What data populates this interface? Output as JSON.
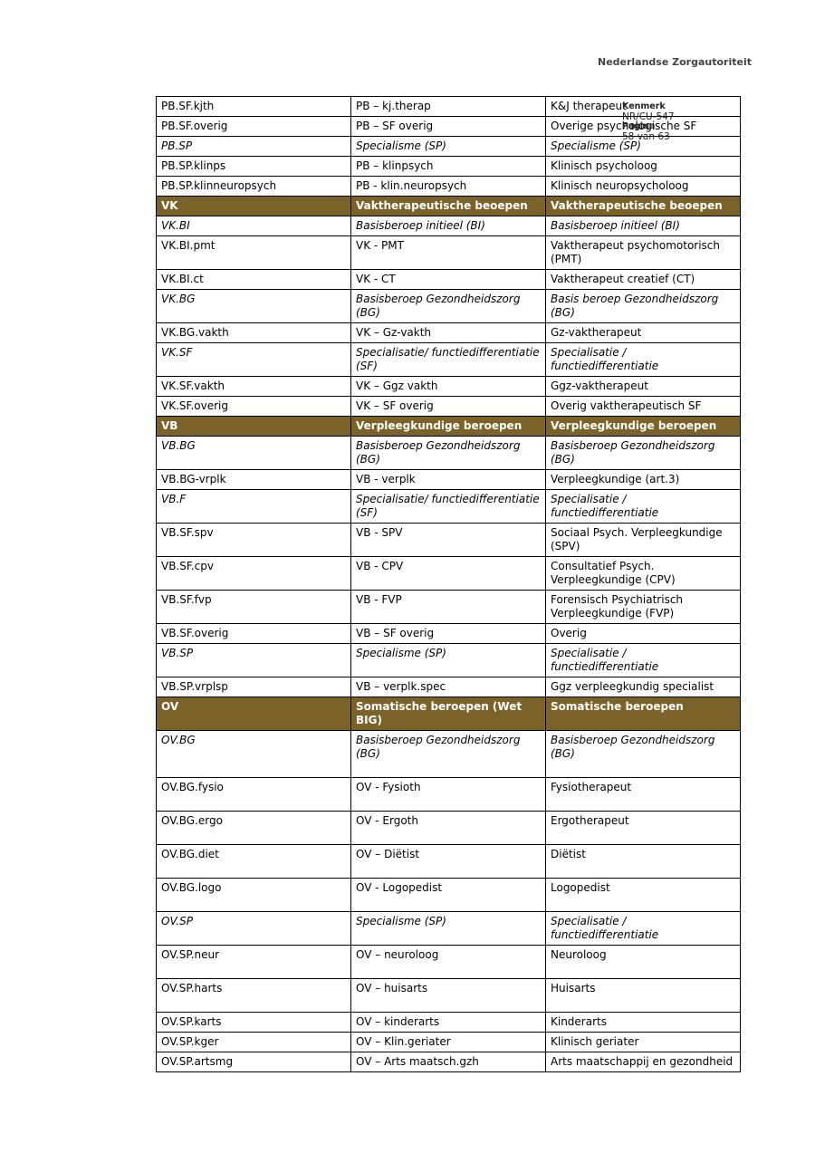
{
  "header": {
    "org": "Nederlandse Zorgautoriteit",
    "kenmerk_label": "Kenmerk",
    "kenmerk": "NR/CU-547",
    "pagina_label": "Pagina",
    "pagina": "58 van 63"
  },
  "table": {
    "rows": [
      {
        "style": "plain",
        "cells": [
          "PB.SF.kjth",
          "PB – kj.therap",
          "K&J therapeut"
        ]
      },
      {
        "style": "plain",
        "cells": [
          "PB.SF.overig",
          "PB – SF overig",
          "Overige psychologische SF"
        ]
      },
      {
        "style": "italic",
        "cells": [
          "PB.SP",
          "Specialisme (SP)",
          "Specialisme (SP)"
        ]
      },
      {
        "style": "plain",
        "cells": [
          "PB.SP.klinps",
          "PB – klinpsych",
          "Klinisch psycholoog"
        ]
      },
      {
        "style": "plain",
        "cells": [
          "PB.SP.klinneuropsych",
          "PB - klin.neuropsych",
          "Klinisch neuropsycholoog"
        ]
      },
      {
        "style": "header",
        "cells": [
          "VK",
          "Vaktherapeutische beoepen",
          "Vaktherapeutische beoepen"
        ]
      },
      {
        "style": "italic",
        "cells": [
          "VK.BI",
          "Basisberoep initieel (BI)",
          "Basisberoep initieel (BI)"
        ]
      },
      {
        "style": "plain",
        "cells": [
          "VK.BI.pmt",
          "VK - PMT",
          "Vaktherapeut psychomotorisch (PMT)"
        ]
      },
      {
        "style": "plain",
        "cells": [
          "VK.BI.ct",
          "VK - CT",
          "Vaktherapeut creatief (CT)"
        ]
      },
      {
        "style": "italic",
        "cells": [
          "VK.BG",
          "Basisberoep Gezondheidszorg (BG)",
          "Basis beroep Gezondheidszorg (BG)"
        ]
      },
      {
        "style": "plain",
        "cells": [
          "VK.BG.vakth",
          "VK – Gz-vakth",
          "Gz-vaktherapeut"
        ]
      },
      {
        "style": "italic",
        "cells": [
          "VK.SF",
          "Specialisatie/ functiedifferentiatie (SF)",
          "Specialisatie / functiedifferentiatie"
        ]
      },
      {
        "style": "plain",
        "cells": [
          "VK.SF.vakth",
          "VK – Ggz vakth",
          "Ggz-vaktherapeut"
        ]
      },
      {
        "style": "plain",
        "cells": [
          "VK.SF.overig",
          "VK – SF overig",
          "Overig vaktherapeutisch SF"
        ]
      },
      {
        "style": "header",
        "cells": [
          "VB",
          "Verpleegkundige beroepen",
          "Verpleegkundige beroepen"
        ]
      },
      {
        "style": "italic",
        "cells": [
          "VB.BG",
          "Basisberoep Gezondheidszorg (BG)",
          "Basisberoep Gezondheidszorg (BG)"
        ]
      },
      {
        "style": "plain",
        "cells": [
          "VB.BG-vrplk",
          "VB - verplk",
          "Verpleegkundige (art.3)"
        ]
      },
      {
        "style": "italic",
        "cells": [
          "VB.F",
          "Specialisatie/ functiedifferentiatie (SF)",
          "Specialisatie / functiedifferentiatie"
        ]
      },
      {
        "style": "plain",
        "cells": [
          "VB.SF.spv",
          "VB - SPV",
          "Sociaal Psych. Verpleegkundige (SPV)"
        ]
      },
      {
        "style": "plain",
        "cells": [
          "VB.SF.cpv",
          "VB - CPV",
          "Consultatief Psych. Verpleegkundige (CPV)"
        ]
      },
      {
        "style": "plain",
        "cells": [
          "VB.SF.fvp",
          "VB - FVP",
          "Forensisch Psychiatrisch Verpleegkundige (FVP)"
        ]
      },
      {
        "style": "plain",
        "cells": [
          "VB.SF.overig",
          "VB – SF overig",
          "Overig"
        ]
      },
      {
        "style": "italic",
        "cells": [
          "VB.SP",
          "Specialisme (SP)",
          "Specialisatie / functiedifferentiatie"
        ]
      },
      {
        "style": "plain",
        "cells": [
          "VB.SP.vrplsp",
          "VB – verplk.spec",
          "Ggz verpleegkundig specialist"
        ]
      },
      {
        "style": "header",
        "cells": [
          "OV",
          "Somatische beroepen (Wet BIG)",
          "Somatische beroepen"
        ]
      },
      {
        "style": "italic",
        "cells": [
          "OV.BG",
          "Basisberoep Gezondheidszorg (BG)",
          "Basisberoep Gezondheidszorg (BG)"
        ]
      },
      {
        "style": "plain",
        "cells": [
          "OV.BG.fysio",
          "OV - Fysioth",
          "Fysiotherapeut"
        ]
      },
      {
        "style": "plain",
        "cells": [
          "OV.BG.ergo",
          "OV - Ergoth",
          "Ergotherapeut"
        ]
      },
      {
        "style": "plain",
        "cells": [
          "OV.BG.diet",
          "OV – Diëtist",
          "Diëtist"
        ]
      },
      {
        "style": "plain",
        "cells": [
          "OV.BG.logo",
          "OV - Logopedist",
          "Logopedist"
        ]
      },
      {
        "style": "italic",
        "cells": [
          "OV.SP",
          "Specialisme (SP)",
          "Specialisatie / functiedifferentiatie"
        ]
      },
      {
        "style": "plain",
        "cells": [
          "OV.SP.neur",
          "OV – neuroloog",
          "Neuroloog"
        ]
      },
      {
        "style": "plain",
        "cells": [
          "OV.SP.harts",
          "OV – huisarts",
          "Huisarts"
        ]
      },
      {
        "style": "plain",
        "cells": [
          "OV.SP.karts",
          "OV – kinderarts",
          "Kinderarts"
        ]
      },
      {
        "style": "plain",
        "cells": [
          "OV.SP.kger",
          "OV – Klin.geriater",
          "Klinisch geriater"
        ]
      },
      {
        "style": "plain",
        "cells": [
          "OV.SP.artsmg",
          "OV – Arts maatsch.gzh",
          "Arts maatschappij en gezondheid"
        ]
      }
    ]
  }
}
